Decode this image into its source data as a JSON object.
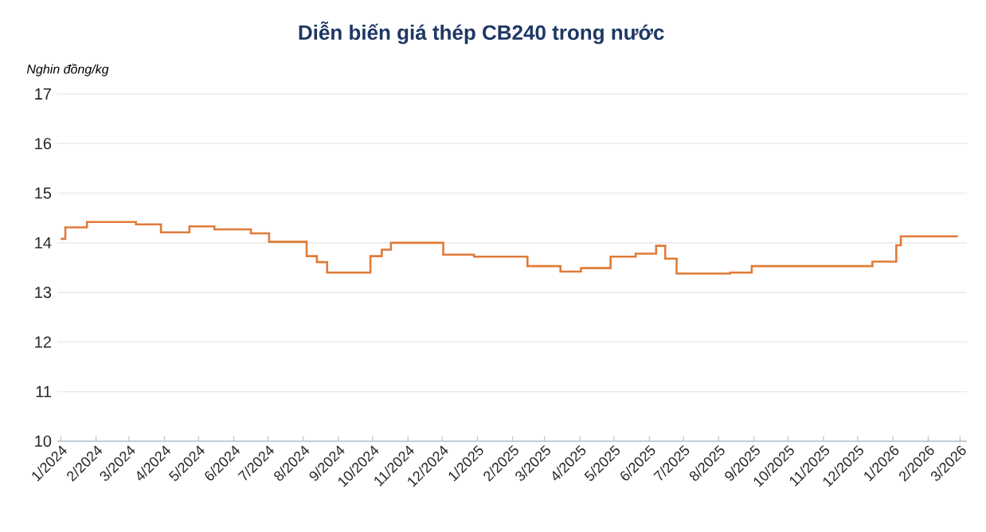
{
  "chart_data": {
    "type": "step",
    "title": "Diễn biến giá thép CB240 trong nước",
    "ylabel": "Nghin đồng/kg",
    "marker": "none",
    "grid": "y",
    "xlim": [
      "2023-12-29",
      "2026-03-07"
    ],
    "xticks": [
      {
        "value": "2024-01",
        "label": "1/2024"
      },
      {
        "value": "2024-02",
        "label": "2/2024"
      },
      {
        "value": "2024-03",
        "label": "3/2024"
      },
      {
        "value": "2024-04",
        "label": "4/2024"
      },
      {
        "value": "2024-05",
        "label": "5/2024"
      },
      {
        "value": "2024-06",
        "label": "6/2024"
      },
      {
        "value": "2024-07",
        "label": "7/2024"
      },
      {
        "value": "2024-08",
        "label": "8/2024"
      },
      {
        "value": "2024-09",
        "label": "9/2024"
      },
      {
        "value": "2024-10",
        "label": "10/2024"
      },
      {
        "value": "2024-11",
        "label": "11/2024"
      },
      {
        "value": "2024-12",
        "label": "12/2024"
      },
      {
        "value": "2025-01",
        "label": "1/2025"
      },
      {
        "value": "2025-02",
        "label": "2/2025"
      },
      {
        "value": "2025-03",
        "label": "3/2025"
      },
      {
        "value": "2025-04",
        "label": "4/2025"
      },
      {
        "value": "2025-05",
        "label": "5/2025"
      },
      {
        "value": "2025-06",
        "label": "6/2025"
      },
      {
        "value": "2025-07",
        "label": "7/2025"
      },
      {
        "value": "2025-08",
        "label": "8/2025"
      },
      {
        "value": "2025-09",
        "label": "9/2025"
      },
      {
        "value": "2025-10",
        "label": "10/2025"
      },
      {
        "value": "2025-11",
        "label": "11/2025"
      },
      {
        "value": "2025-12",
        "label": "12/2025"
      },
      {
        "value": "2026-01",
        "label": "1/2026"
      },
      {
        "value": "2026-02",
        "label": "2/2026"
      },
      {
        "value": "2026-03",
        "label": "3/2026"
      }
    ],
    "ylim": [
      10,
      17
    ],
    "yticks": [
      10,
      11,
      12,
      13,
      14,
      15,
      16,
      17
    ],
    "series": [
      {
        "color": "#e07b39",
        "x": [
          "2024-01-01",
          "2024-01-05",
          "2024-01-24",
          "2024-03-07",
          "2024-03-29",
          "2024-04-23",
          "2024-05-15",
          "2024-06-16",
          "2024-07-02",
          "2024-08-04",
          "2024-08-13",
          "2024-08-22",
          "2024-09-29",
          "2024-10-09",
          "2024-10-17",
          "2024-12-02",
          "2024-12-29",
          "2025-02-14",
          "2025-03-15",
          "2025-04-02",
          "2025-04-28",
          "2025-05-20",
          "2025-06-07",
          "2025-06-15",
          "2025-06-25",
          "2025-08-11",
          "2025-08-30",
          "2025-12-14",
          "2026-01-04",
          "2026-01-08",
          "2026-02-27"
        ],
        "values": [
          14.08,
          14.31,
          14.42,
          14.37,
          14.21,
          14.33,
          14.27,
          14.19,
          14.02,
          13.73,
          13.61,
          13.4,
          13.73,
          13.86,
          14.0,
          13.76,
          13.72,
          13.53,
          13.42,
          13.49,
          13.72,
          13.78,
          13.94,
          13.68,
          13.38,
          13.4,
          13.53,
          13.62,
          13.95,
          14.13,
          14.13
        ]
      }
    ]
  }
}
